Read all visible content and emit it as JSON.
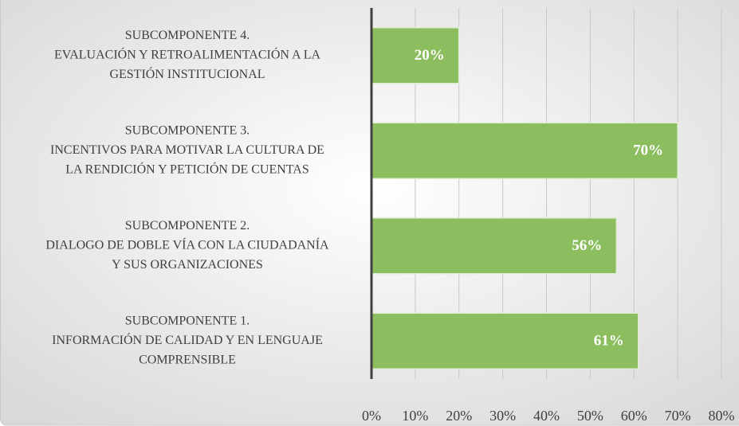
{
  "chart_data": {
    "type": "bar",
    "orientation": "horizontal",
    "categories": [
      [
        "SUBCOMPONENTE 4.",
        "EVALUACIÓN Y RETROALIMENTACIÓN A LA",
        "GESTIÓN INSTITUCIONAL"
      ],
      [
        "SUBCOMPONENTE 3.",
        "INCENTIVOS PARA MOTIVAR LA CULTURA DE",
        "LA RENDICIÓN Y PETICIÓN DE CUENTAS"
      ],
      [
        "SUBCOMPONENTE 2.",
        "DIALOGO DE DOBLE VÍA CON LA CIUDADANÍA",
        "Y SUS ORGANIZACIONES"
      ],
      [
        "SUBCOMPONENTE 1.",
        "INFORMACIÓN DE CALIDAD Y EN LENGUAJE",
        "COMPRENSIBLE"
      ]
    ],
    "values": [
      20,
      70,
      56,
      61
    ],
    "value_labels": [
      "20%",
      "70%",
      "56%",
      "61%"
    ],
    "color": "#8cbd5f",
    "xlim": [
      0,
      80
    ],
    "xticks": [
      {
        "value": 0,
        "label": "0%"
      },
      {
        "value": 10,
        "label": "10%"
      },
      {
        "value": 20,
        "label": "20%"
      },
      {
        "value": 30,
        "label": "30%"
      },
      {
        "value": 40,
        "label": "40%"
      },
      {
        "value": 50,
        "label": "50%"
      },
      {
        "value": 60,
        "label": "60%"
      },
      {
        "value": 70,
        "label": "70%"
      },
      {
        "value": 80,
        "label": "80%"
      }
    ],
    "grid": true
  }
}
